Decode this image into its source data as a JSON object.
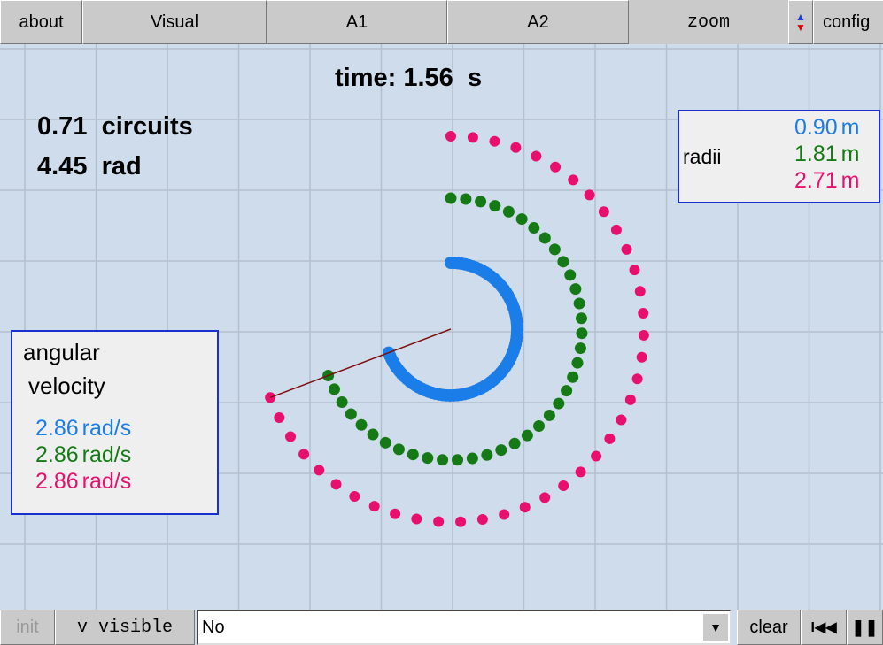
{
  "toolbar": {
    "about": "about",
    "visual": "Visual",
    "a1": "A1",
    "a2": "A2",
    "zoom": "zoom",
    "config": "config"
  },
  "time": {
    "label": "time:",
    "value": "1.56",
    "unit": "s"
  },
  "circuits": {
    "value": "0.71",
    "label": "circuits"
  },
  "angle": {
    "value": "4.45",
    "label": "rad"
  },
  "radii": {
    "title": "radii",
    "items": [
      {
        "value": "0.90",
        "unit": "m"
      },
      {
        "value": "1.81",
        "unit": "m"
      },
      {
        "value": "2.71",
        "unit": "m"
      }
    ]
  },
  "angular_velocity": {
    "title_line1": "angular",
    "title_line2": "velocity",
    "items": [
      {
        "value": "2.86",
        "unit": "rad/s"
      },
      {
        "value": "2.86",
        "unit": "rad/s"
      },
      {
        "value": "2.86",
        "unit": "rad/s"
      }
    ]
  },
  "bottom_bar": {
    "init": "init",
    "v_visible": "v visible",
    "select": "No",
    "clear": "clear"
  }
}
